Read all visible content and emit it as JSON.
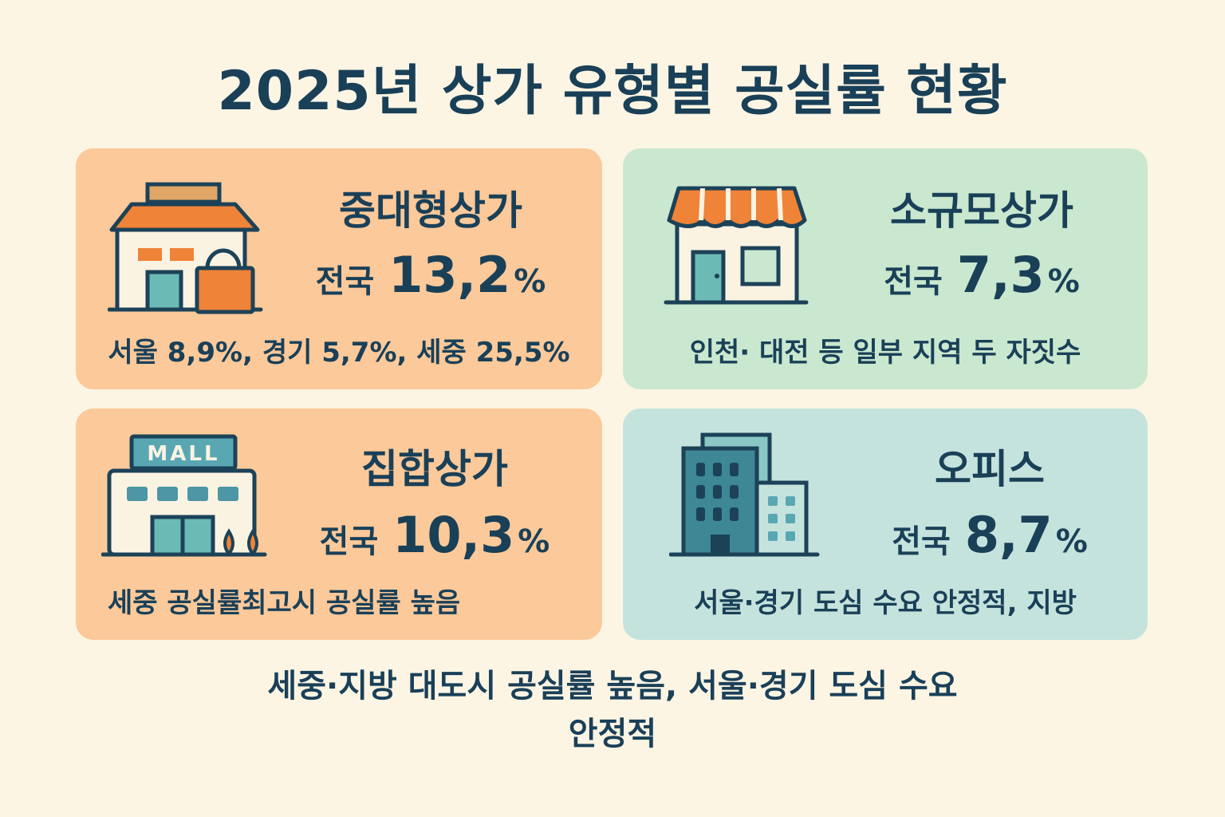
{
  "title": "2025년 상가 유형별 공실률 현황",
  "cards": {
    "large": {
      "name": "중대형상가",
      "rate_label": "전국",
      "rate_value": "13,2",
      "rate_unit": "%",
      "note": "서울 8,9%, 경기 5,7%, 세중 25,5%",
      "icon": "store-with-shopping-bag-icon",
      "color": "#fcc99a"
    },
    "small": {
      "name": "소규모상가",
      "rate_label": "전국",
      "rate_value": "7,3",
      "rate_unit": "%",
      "note": "인천· 대전 등 일부 지역 두 자짓수",
      "icon": "storefront-awning-icon",
      "color": "#c9e8cf"
    },
    "mall": {
      "name": "집합상가",
      "rate_label": "전국",
      "rate_value": "10,3",
      "rate_unit": "%",
      "note": "세중 공실률최고시 공실률 높음",
      "icon": "mall-building-icon",
      "icon_text": "MALL",
      "color": "#fcc99a"
    },
    "office": {
      "name": "오피스",
      "rate_label": "전국",
      "rate_value": "8,7",
      "rate_unit": "%",
      "note": "서울·경기 도심 수요 안정적, 지방",
      "icon": "office-buildings-icon",
      "color": "#c5e3dd"
    }
  },
  "footer": {
    "line1": "세중·지방 대도시 공실률 높음, 서울·경기 도심 수요",
    "line2": "안정적"
  }
}
